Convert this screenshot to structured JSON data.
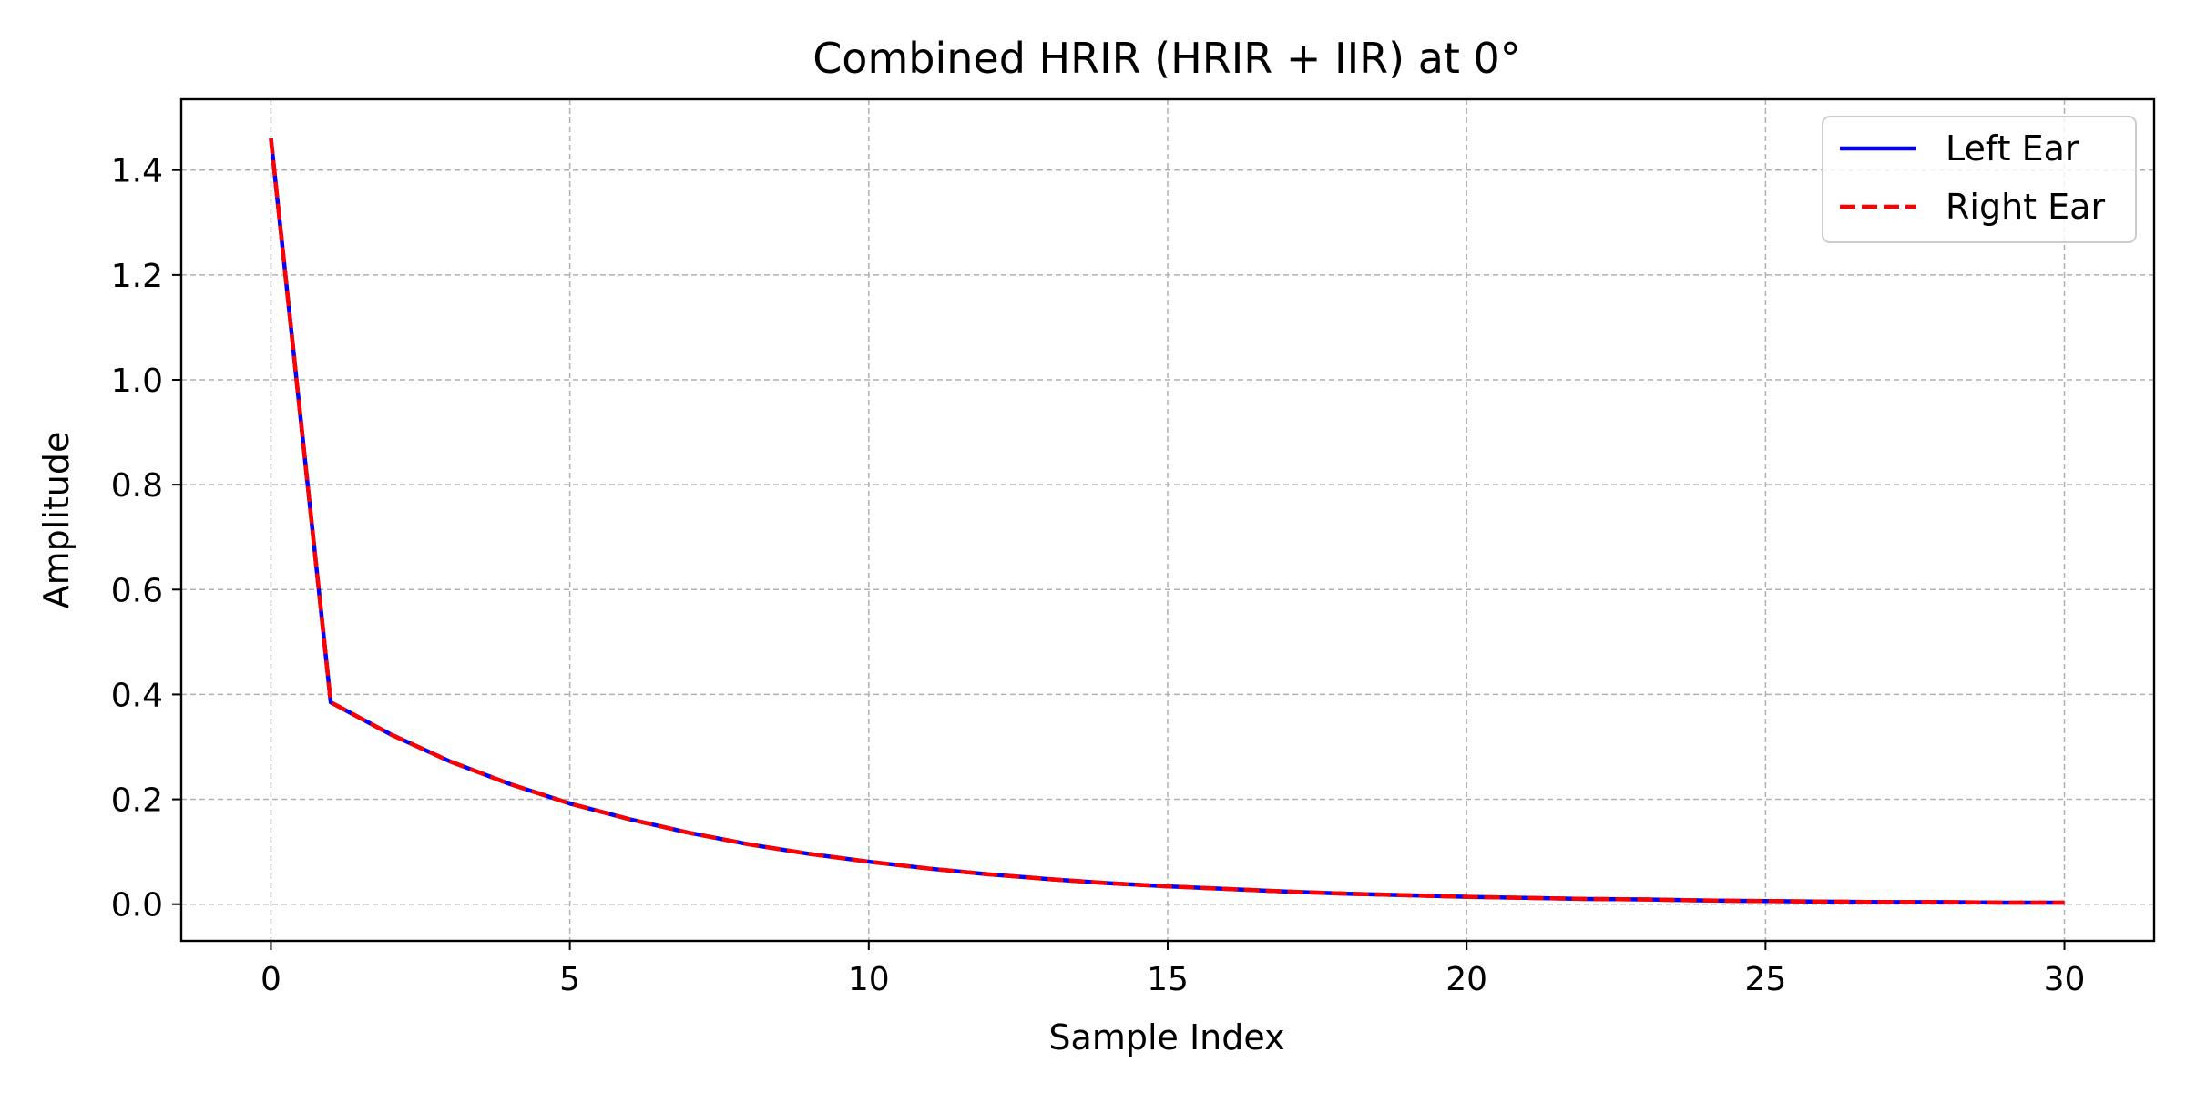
{
  "chart_data": {
    "type": "line",
    "title": "Combined HRIR (HRIR + IIR) at 0°",
    "xlabel": "Sample Index",
    "ylabel": "Amplitude",
    "xlim": [
      -1.5,
      31.5
    ],
    "ylim": [
      -0.07,
      1.535
    ],
    "xticks": [
      0,
      5,
      10,
      15,
      20,
      25,
      30
    ],
    "xtick_labels": [
      "0",
      "5",
      "10",
      "15",
      "20",
      "25",
      "30"
    ],
    "yticks": [
      0.0,
      0.2,
      0.4,
      0.6,
      0.8,
      1.0,
      1.2,
      1.4
    ],
    "ytick_labels": [
      "0.0",
      "0.2",
      "0.4",
      "0.6",
      "0.8",
      "1.0",
      "1.2",
      "1.4"
    ],
    "grid": true,
    "legend_position": "top-right",
    "x": [
      0,
      1,
      2,
      3,
      4,
      5,
      6,
      7,
      8,
      9,
      10,
      11,
      12,
      13,
      14,
      15,
      16,
      17,
      18,
      19,
      20,
      21,
      22,
      23,
      24,
      25,
      26,
      27,
      28,
      29,
      30
    ],
    "series": [
      {
        "name": "Left Ear",
        "color": "#0000ff",
        "style": "solid",
        "values": [
          1.46,
          0.385,
          0.324,
          0.272,
          0.229,
          0.192,
          0.162,
          0.136,
          0.114,
          0.096,
          0.081,
          0.068,
          0.057,
          0.048,
          0.04,
          0.034,
          0.029,
          0.024,
          0.02,
          0.017,
          0.014,
          0.012,
          0.01,
          0.009,
          0.007,
          0.006,
          0.005,
          0.004,
          0.004,
          0.003,
          0.003
        ]
      },
      {
        "name": "Right Ear",
        "color": "#ff0000",
        "style": "dashed",
        "values": [
          1.46,
          0.385,
          0.324,
          0.272,
          0.229,
          0.192,
          0.162,
          0.136,
          0.114,
          0.096,
          0.081,
          0.068,
          0.057,
          0.048,
          0.04,
          0.034,
          0.029,
          0.024,
          0.02,
          0.017,
          0.014,
          0.012,
          0.01,
          0.009,
          0.007,
          0.006,
          0.005,
          0.004,
          0.004,
          0.003,
          0.003
        ]
      }
    ]
  }
}
